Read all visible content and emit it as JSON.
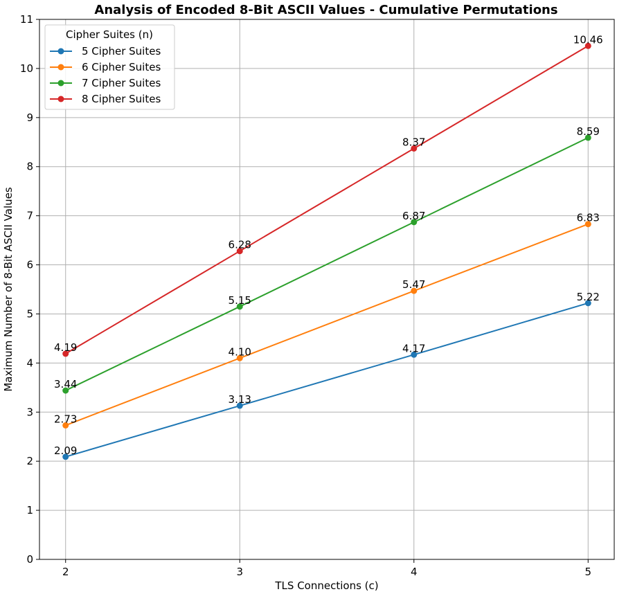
{
  "chart_data": {
    "type": "line",
    "title": "Analysis of Encoded 8-Bit ASCII Values - Cumulative Permutations",
    "xlabel": "TLS Connections (c)",
    "ylabel": "Maximum Number of 8-Bit ASCII Values",
    "x": [
      2,
      3,
      4,
      5
    ],
    "xlim": [
      1.85,
      5.15
    ],
    "ylim": [
      0,
      11
    ],
    "xticks": [
      2,
      3,
      4,
      5
    ],
    "yticks": [
      0,
      1,
      2,
      3,
      4,
      5,
      6,
      7,
      8,
      9,
      10,
      11
    ],
    "grid": true,
    "legend": {
      "title": "Cipher Suites (n)",
      "position": "top-left"
    },
    "series": [
      {
        "name": "5 Cipher Suites",
        "color": "#1f77b4",
        "values": [
          2.09,
          3.13,
          4.17,
          5.22
        ],
        "labels": [
          "2.09",
          "3.13",
          "4.17",
          "5.22"
        ]
      },
      {
        "name": "6 Cipher Suites",
        "color": "#ff7f0e",
        "values": [
          2.73,
          4.1,
          5.47,
          6.83
        ],
        "labels": [
          "2.73",
          "4.10",
          "5.47",
          "6.83"
        ]
      },
      {
        "name": "7 Cipher Suites",
        "color": "#2ca02c",
        "values": [
          3.44,
          5.15,
          6.87,
          8.59
        ],
        "labels": [
          "3.44",
          "5.15",
          "6.87",
          "8.59"
        ]
      },
      {
        "name": "8 Cipher Suites",
        "color": "#d62728",
        "values": [
          4.19,
          6.28,
          8.37,
          10.46
        ],
        "labels": [
          "4.19",
          "6.28",
          "8.37",
          "10.46"
        ]
      }
    ]
  }
}
